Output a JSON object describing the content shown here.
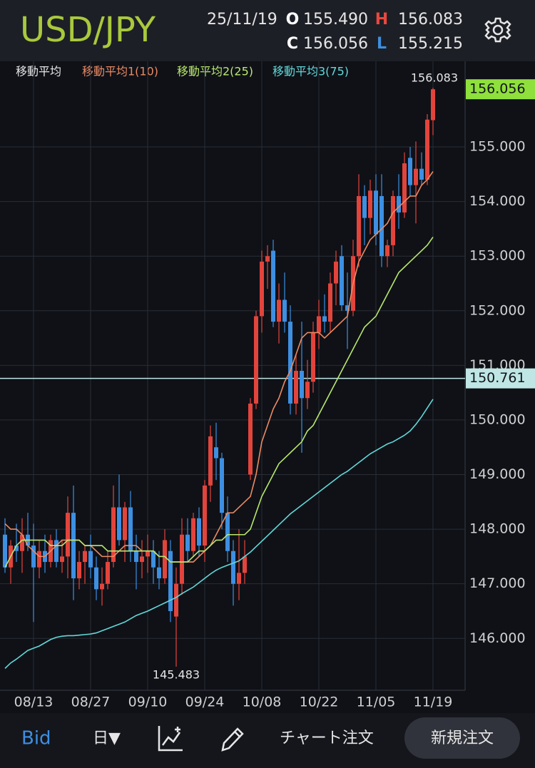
{
  "chart_data": {
    "type": "candlestick",
    "title": "USD/JPY",
    "date": "25/11/19",
    "ohlc": [
      {
        "key": "O",
        "value": 155.49,
        "label": "155.490",
        "color": "#ffffff"
      },
      {
        "key": "H",
        "value": 156.083,
        "label": "156.083",
        "color": "#e8483e"
      },
      {
        "key": "C",
        "value": 156.056,
        "label": "156.056",
        "color": "#ffffff"
      },
      {
        "key": "L",
        "value": 155.215,
        "label": "155.215",
        "color": "#3d8fe0"
      }
    ],
    "legend_title": "移動平均",
    "categories": [
      null,
      null,
      null,
      null,
      null,
      "08/13",
      null,
      null,
      null,
      null,
      null,
      null,
      null,
      null,
      null,
      "08/27",
      null,
      null,
      null,
      null,
      null,
      null,
      null,
      null,
      null,
      "09/10",
      null,
      null,
      null,
      null,
      null,
      null,
      null,
      null,
      null,
      "09/24",
      null,
      null,
      null,
      null,
      null,
      null,
      null,
      null,
      null,
      "10/08",
      null,
      null,
      null,
      null,
      null,
      null,
      null,
      null,
      null,
      "10/22",
      null,
      null,
      null,
      null,
      null,
      null,
      null,
      null,
      null,
      "11/05",
      null,
      null,
      null,
      null,
      null,
      null,
      null,
      null,
      null,
      "11/19"
    ],
    "open": [
      147.9,
      147.3,
      147.7,
      147.6,
      147.9,
      147.7,
      147.3,
      147.6,
      147.4,
      147.8,
      147.4,
      147.5,
      148.3,
      147.1,
      147.4,
      147.6,
      147.3,
      146.9,
      147.0,
      147.4,
      148.4,
      147.8,
      148.4,
      147.6,
      147.4,
      147.5,
      147.6,
      147.3,
      147.1,
      147.6,
      146.4,
      147.0,
      147.9,
      147.6,
      148.2,
      147.7,
      148.8,
      149.5,
      149.3,
      148.3,
      147.6,
      147.0,
      147.2,
      149.0,
      150.3,
      151.9,
      152.9,
      153.1,
      151.8,
      152.2,
      151.8,
      150.3,
      150.9,
      150.4,
      150.7,
      151.6,
      151.9,
      151.8,
      152.5,
      153.0,
      152.1,
      152.0,
      153.0,
      154.1,
      153.7,
      154.2,
      154.1,
      153.0,
      153.2,
      154.1,
      153.8,
      154.8,
      154.3,
      154.6,
      154.4,
      155.49
    ],
    "high": [
      148.2,
      147.8,
      148.1,
      148.2,
      148.3,
      148.1,
      147.8,
      147.9,
      147.9,
      148.0,
      147.8,
      148.6,
      148.8,
      147.6,
      147.7,
      147.9,
      147.5,
      147.3,
      147.6,
      148.8,
      149.0,
      148.5,
      148.7,
      147.9,
      147.8,
      147.9,
      147.8,
      147.6,
      148.0,
      147.8,
      147.3,
      148.2,
      148.2,
      148.3,
      148.4,
      148.9,
      149.9,
      149.95,
      149.4,
      148.6,
      147.8,
      148.0,
      147.8,
      150.4,
      152.0,
      153.1,
      153.2,
      153.3,
      152.5,
      152.7,
      152.1,
      151.2,
      151.8,
      151.1,
      151.8,
      152.2,
      152.3,
      152.7,
      153.1,
      153.2,
      152.7,
      153.3,
      154.5,
      154.3,
      154.4,
      154.5,
      154.5,
      153.3,
      154.2,
      154.5,
      154.9,
      155.0,
      155.1,
      154.9,
      155.6,
      156.083
    ],
    "low": [
      147.2,
      147.0,
      147.4,
      147.2,
      147.6,
      146.3,
      147.1,
      147.2,
      147.3,
      147.3,
      147.2,
      147.1,
      146.7,
      146.9,
      147.0,
      147.1,
      146.7,
      146.6,
      146.9,
      147.3,
      147.7,
      147.4,
      147.4,
      146.9,
      147.1,
      147.2,
      147.0,
      146.9,
      147.0,
      146.3,
      145.483,
      146.8,
      147.4,
      147.5,
      147.5,
      147.4,
      148.5,
      148.9,
      148.0,
      147.4,
      146.6,
      146.7,
      147.0,
      148.9,
      150.2,
      151.6,
      152.4,
      151.7,
      151.4,
      151.6,
      150.1,
      150.1,
      149.4,
      150.2,
      150.5,
      151.3,
      151.6,
      151.6,
      152.1,
      152.0,
      151.3,
      151.9,
      152.8,
      153.2,
      153.4,
      153.2,
      152.8,
      152.8,
      153.0,
      153.5,
      153.7,
      154.1,
      153.6,
      154.3,
      154.3,
      155.215
    ],
    "close": [
      147.3,
      147.7,
      147.6,
      147.9,
      147.7,
      147.3,
      147.6,
      147.4,
      147.8,
      147.4,
      147.5,
      148.3,
      147.1,
      147.4,
      147.6,
      147.3,
      146.9,
      147.0,
      147.4,
      148.4,
      147.8,
      148.4,
      147.6,
      147.4,
      147.5,
      147.6,
      147.3,
      147.1,
      147.8,
      146.5,
      147.0,
      147.9,
      147.6,
      148.2,
      147.7,
      148.8,
      149.7,
      149.3,
      148.3,
      147.6,
      147.0,
      147.2,
      147.5,
      150.3,
      151.9,
      152.9,
      153.0,
      151.8,
      152.2,
      151.8,
      150.3,
      150.9,
      150.4,
      150.7,
      151.6,
      151.9,
      151.8,
      152.5,
      152.9,
      152.1,
      152.0,
      153.0,
      154.1,
      153.7,
      154.2,
      153.4,
      153.0,
      153.2,
      154.1,
      153.8,
      154.7,
      154.3,
      154.6,
      154.4,
      155.5,
      156.056
    ],
    "up_color": "#e2443c",
    "down_color": "#3d8fe2",
    "series": [
      {
        "name": "移動平均1(10)",
        "color": "#ec8a62",
        "values": [
          148.1,
          148.0,
          148.0,
          147.9,
          147.7,
          147.6,
          147.5,
          147.5,
          147.6,
          147.7,
          147.8,
          147.8,
          147.8,
          147.8,
          147.7,
          147.7,
          147.6,
          147.5,
          147.5,
          147.5,
          147.6,
          147.7,
          147.7,
          147.7,
          147.6,
          147.6,
          147.6,
          147.5,
          147.5,
          147.4,
          147.4,
          147.4,
          147.4,
          147.4,
          147.5,
          147.6,
          147.7,
          147.9,
          148.1,
          148.3,
          148.3,
          148.4,
          148.5,
          148.6,
          149.0,
          149.6,
          149.9,
          150.2,
          150.4,
          150.7,
          150.9,
          151.2,
          151.5,
          151.6,
          151.6,
          151.6,
          151.5,
          151.6,
          151.7,
          151.8,
          151.9,
          152.5,
          152.9,
          153.1,
          153.3,
          153.4,
          153.5,
          153.6,
          153.8,
          153.9,
          154.0,
          154.1,
          154.1,
          154.3,
          154.4,
          154.55
        ]
      },
      {
        "name": "移動平均2(25)",
        "color": "#b9e86c",
        "values": [
          147.3,
          147.5,
          147.7,
          147.8,
          147.8,
          147.8,
          147.8,
          147.8,
          147.7,
          147.7,
          147.7,
          147.8,
          147.8,
          147.8,
          147.7,
          147.7,
          147.7,
          147.7,
          147.6,
          147.6,
          147.6,
          147.6,
          147.6,
          147.6,
          147.6,
          147.6,
          147.6,
          147.5,
          147.5,
          147.4,
          147.4,
          147.4,
          147.4,
          147.5,
          147.6,
          147.6,
          147.7,
          147.8,
          147.8,
          147.9,
          147.9,
          147.9,
          147.9,
          148.0,
          148.3,
          148.6,
          148.8,
          149.0,
          149.2,
          149.3,
          149.4,
          149.5,
          149.6,
          149.8,
          149.9,
          150.1,
          150.3,
          150.5,
          150.7,
          150.9,
          151.1,
          151.3,
          151.5,
          151.7,
          151.8,
          151.9,
          152.1,
          152.3,
          152.5,
          152.7,
          152.8,
          152.9,
          153.0,
          153.1,
          153.2,
          153.35
        ]
      },
      {
        "name": "移動平均3(75)",
        "color": "#62d8d8",
        "values": [
          145.45,
          145.55,
          145.62,
          145.7,
          145.78,
          145.82,
          145.86,
          145.92,
          145.98,
          146.02,
          146.04,
          146.05,
          146.05,
          146.06,
          146.07,
          146.08,
          146.1,
          146.14,
          146.18,
          146.22,
          146.26,
          146.3,
          146.36,
          146.42,
          146.46,
          146.5,
          146.55,
          146.6,
          146.65,
          146.7,
          146.75,
          146.82,
          146.88,
          146.94,
          147.02,
          147.1,
          147.18,
          147.25,
          147.3,
          147.34,
          147.38,
          147.42,
          147.5,
          147.58,
          147.68,
          147.78,
          147.88,
          147.98,
          148.08,
          148.18,
          148.28,
          148.36,
          148.44,
          148.52,
          148.6,
          148.68,
          148.76,
          148.84,
          148.92,
          149.0,
          149.06,
          149.14,
          149.22,
          149.3,
          149.38,
          149.44,
          149.5,
          149.56,
          149.6,
          149.66,
          149.72,
          149.8,
          149.92,
          150.06,
          150.22,
          150.38
        ]
      }
    ],
    "ylim": [
      145.05,
      156.45
    ],
    "yticks": [
      {
        "value": 146,
        "label": "146.000"
      },
      {
        "value": 147,
        "label": "147.000"
      },
      {
        "value": 148,
        "label": "148.000"
      },
      {
        "value": 149,
        "label": "149.000"
      },
      {
        "value": 150,
        "label": "150.000"
      },
      {
        "value": 151,
        "label": "151.000"
      },
      {
        "value": 152,
        "label": "152.000"
      },
      {
        "value": 153,
        "label": "153.000"
      },
      {
        "value": 154,
        "label": "154.000"
      },
      {
        "value": 155,
        "label": "155.000"
      }
    ],
    "grid": true,
    "price_line": {
      "value": 150.761,
      "label": "150.761",
      "color": "#bfe6e4"
    },
    "last_price": {
      "value": 156.056,
      "label": "156.056",
      "color": "#8fe03c"
    },
    "high_label": {
      "value": 156.083,
      "label": "156.083"
    },
    "low_label": {
      "value": 145.483,
      "label": "145.483"
    }
  },
  "toolbar": {
    "bid": "Bid",
    "period": "日▼",
    "chart_order": "チャート注文",
    "new_order": "新規注文"
  }
}
